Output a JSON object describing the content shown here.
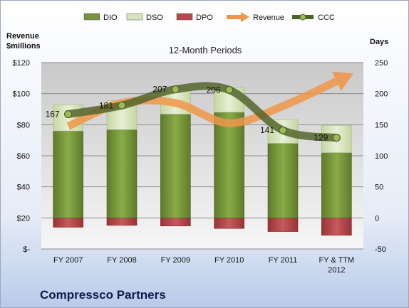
{
  "chart_data": {
    "type": "bar",
    "title": "12-Month Periods",
    "footer_title": "Compressco Partners",
    "categories": [
      "FY 2007",
      "FY 2008",
      "FY 2009",
      "FY 2010",
      "FY 2011",
      "FY & TTM 2012"
    ],
    "y_left": {
      "label_line1": "Revenue",
      "label_line2": "$millions",
      "range": [
        0,
        120
      ],
      "ticks": [
        0,
        20,
        40,
        60,
        80,
        100,
        120
      ],
      "tick_labels": [
        "$-",
        "$20",
        "$40",
        "$60",
        "$80",
        "$100",
        "$120"
      ]
    },
    "y_right": {
      "label": "Days",
      "range": [
        -50,
        250
      ],
      "ticks": [
        -50,
        0,
        50,
        100,
        150,
        200,
        250
      ],
      "tick_labels": [
        "-50",
        "0",
        "50",
        "100",
        "150",
        "200",
        "250"
      ]
    },
    "grid": true,
    "legend_position": "top",
    "legend": [
      {
        "name": "DIO",
        "kind": "bar",
        "color": "#77933c"
      },
      {
        "name": "DSO",
        "kind": "bar",
        "color": "#d7e4bd"
      },
      {
        "name": "DPO",
        "kind": "bar",
        "color": "#b8474a"
      },
      {
        "name": "Revenue",
        "kind": "arrow",
        "color": "#f0964b"
      },
      {
        "name": "CCC",
        "kind": "line-marker",
        "color": "#4f6228"
      }
    ],
    "series": [
      {
        "name": "DIO",
        "axis": "days",
        "values": [
          140,
          142,
          167,
          170,
          120,
          105
        ]
      },
      {
        "name": "DSO",
        "axis": "days",
        "values": [
          42,
          47,
          40,
          40,
          38,
          44
        ]
      },
      {
        "name": "DPO",
        "axis": "days",
        "values": [
          -15,
          -12,
          -13,
          -17,
          -22,
          -28
        ]
      },
      {
        "name": "Revenue",
        "axis": "revenue",
        "values": [
          79,
          94,
          94,
          81,
          92,
          108
        ]
      },
      {
        "name": "CCC",
        "axis": "days",
        "values": [
          167,
          181,
          207,
          206,
          141,
          129
        ]
      }
    ],
    "data_labels": [
      "167",
      "181",
      "207",
      "206",
      "141",
      "129"
    ]
  }
}
